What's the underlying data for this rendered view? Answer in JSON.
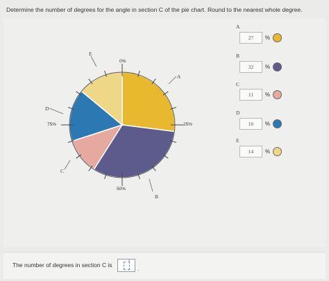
{
  "question": "Determine the number of degrees for the angle in section C of the pie chart. Round to the nearest whole degree.",
  "chart_data": {
    "type": "pie",
    "start_angle_deg": 0,
    "slices": [
      {
        "label": "A",
        "percent": 27,
        "color": "#e8b92e"
      },
      {
        "label": "B",
        "percent": 32,
        "color": "#5d5a8c"
      },
      {
        "label": "C",
        "percent": 11,
        "color": "#e5a9a0"
      },
      {
        "label": "D",
        "percent": 16,
        "color": "#2b78b2"
      },
      {
        "label": "E",
        "percent": 14,
        "color": "#efd788"
      }
    ],
    "tick_labels": [
      "0%",
      "25%",
      "50%",
      "75%"
    ]
  },
  "legend": [
    {
      "letter": "A",
      "value": "27",
      "unit": "%",
      "color": "#e8b92e"
    },
    {
      "letter": "B",
      "value": "32",
      "unit": "%",
      "color": "#5d5a8c"
    },
    {
      "letter": "C",
      "value": "11",
      "unit": "%",
      "color": "#e5a9a0"
    },
    {
      "letter": "D",
      "value": "16",
      "unit": "%",
      "color": "#2b78b2"
    },
    {
      "letter": "E",
      "value": "14",
      "unit": "%",
      "color": "#efd788"
    }
  ],
  "answer_prompt": "The number of degrees in section C is",
  "answer_value": "",
  "degree_symbol": "°",
  "period": "."
}
